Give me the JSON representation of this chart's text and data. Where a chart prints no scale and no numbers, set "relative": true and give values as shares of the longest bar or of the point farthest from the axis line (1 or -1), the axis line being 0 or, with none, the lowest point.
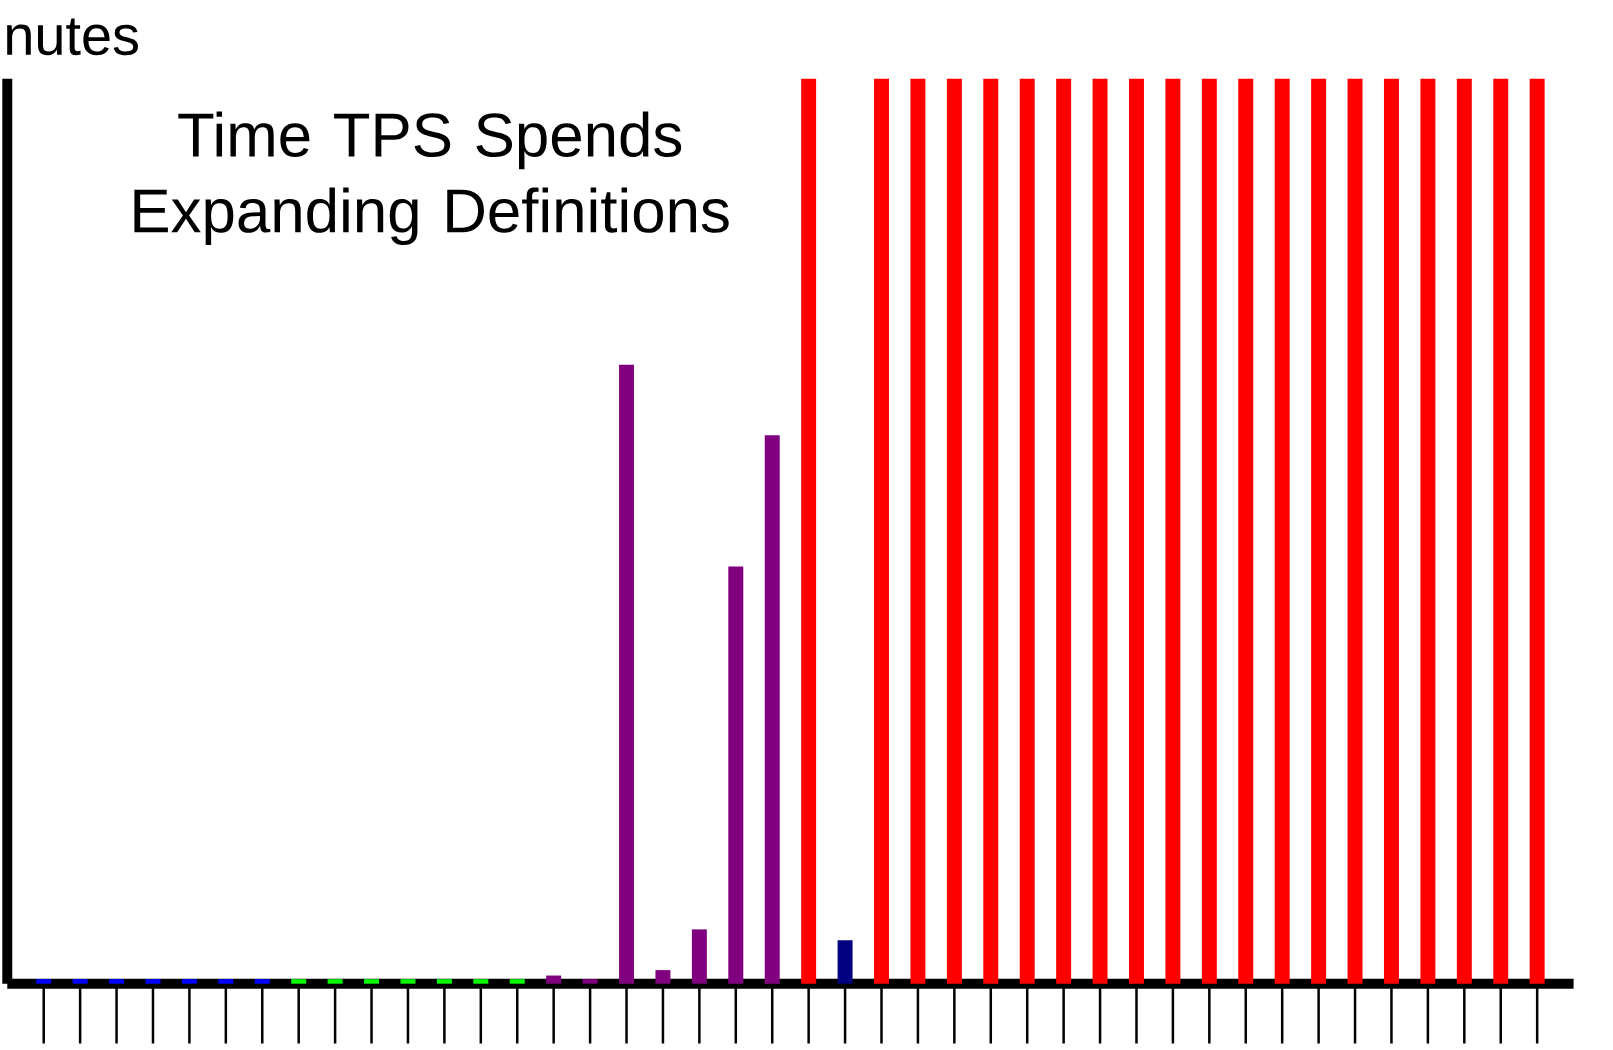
{
  "chart_data": {
    "type": "bar",
    "title": "Time TPS Spends Expanding Definitions",
    "ylabel": "nutes",
    "relative": true,
    "categories": [
      null,
      null,
      null,
      null,
      null,
      null,
      null,
      null,
      null,
      null,
      null,
      null,
      null,
      null,
      null,
      null,
      null,
      null,
      null,
      null,
      null,
      null,
      null,
      null,
      null,
      null,
      null,
      null,
      null,
      null,
      null,
      null,
      null,
      null,
      null,
      null,
      null,
      null,
      null,
      null,
      null,
      null
    ],
    "values": [
      0.005,
      0.005,
      0.005,
      0.005,
      0.005,
      0.005,
      0.005,
      0.005,
      0.005,
      0.005,
      0.005,
      0.005,
      0.005,
      0.005,
      0.009,
      0.005,
      0.684,
      0.015,
      0.06,
      0.461,
      0.606,
      1,
      0.048,
      1,
      1,
      1,
      1,
      1,
      1,
      1,
      1,
      1,
      1,
      1,
      1,
      1,
      1,
      1,
      1,
      1,
      1,
      1
    ],
    "colors": [
      "#0000ff",
      "#0000ff",
      "#0000ff",
      "#0000ff",
      "#0000ff",
      "#0000ff",
      "#0000ff",
      "#00ff00",
      "#00ff00",
      "#00ff00",
      "#00ff00",
      "#00ff00",
      "#00ff00",
      "#00ff00",
      "#800080",
      "#800080",
      "#800080",
      "#800080",
      "#800080",
      "#800080",
      "#800080",
      "#ff0000",
      "#000080",
      "#ff0000",
      "#ff0000",
      "#ff0000",
      "#ff0000",
      "#ff0000",
      "#ff0000",
      "#ff0000",
      "#ff0000",
      "#ff0000",
      "#ff0000",
      "#ff0000",
      "#ff0000",
      "#ff0000",
      "#ff0000",
      "#ff0000",
      "#ff0000",
      "#ff0000",
      "#ff0000",
      "#ff0000"
    ]
  }
}
